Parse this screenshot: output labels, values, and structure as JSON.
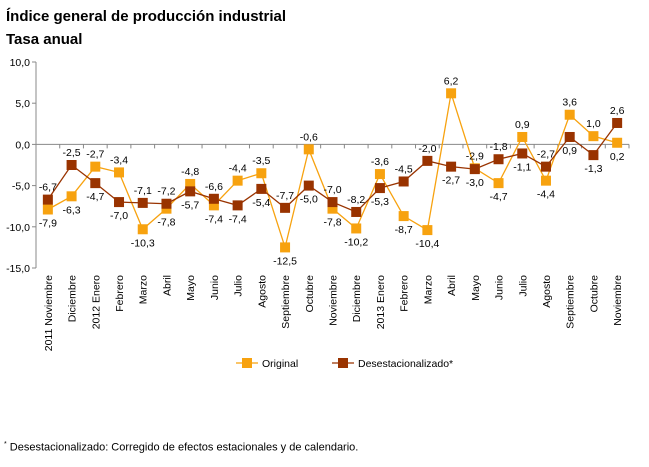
{
  "chart_data": {
    "type": "line",
    "title": "Índice general de producción industrial",
    "subtitle": "Tasa anual",
    "xlabel": "",
    "ylabel": "",
    "ylim": [
      -15,
      10
    ],
    "yticks": [
      "10,0",
      "5,0",
      "0,0",
      "-5,0",
      "-10,0",
      "-15,0"
    ],
    "ytick_values": [
      10,
      5,
      0,
      -5,
      -10,
      -15
    ],
    "categories": [
      "2011 Noviembre",
      "Diciembre",
      "2012 Enero",
      "Febrero",
      "Marzo",
      "Abril",
      "Mayo",
      "Junio",
      "Julio",
      "Agosto",
      "Septiembre",
      "Octubre",
      "Noviembre",
      "Diciembre",
      "2013 Enero",
      "Febrero",
      "Marzo",
      "Abril",
      "Mayo",
      "Junio",
      "Julio",
      "Agosto",
      "Septiembre",
      "Octubre",
      "Noviembre"
    ],
    "series": [
      {
        "name": "Original",
        "color": "#F7A20F",
        "values": [
          -7.9,
          -6.3,
          -2.7,
          -3.4,
          -10.3,
          -7.8,
          -4.8,
          -7.4,
          -4.4,
          -3.5,
          -12.5,
          -0.6,
          -7.8,
          -10.2,
          -3.6,
          -8.7,
          -10.4,
          6.2,
          -2.9,
          -4.7,
          0.9,
          -4.4,
          3.6,
          1.0,
          0.2
        ]
      },
      {
        "name": "Desestacionalizado*",
        "color": "#993300",
        "values": [
          -6.7,
          -2.5,
          -4.7,
          -7.0,
          -7.1,
          -7.2,
          -5.7,
          -6.6,
          -7.4,
          -5.4,
          -7.7,
          -5.0,
          -7.0,
          -8.2,
          -5.3,
          -4.5,
          -2.0,
          -2.7,
          -3.0,
          -1.8,
          -1.1,
          -2.7,
          0.9,
          -1.3,
          2.6
        ]
      }
    ],
    "legend_position": "bottom",
    "grid": false,
    "footnote_mark": "*",
    "footnote": "Desestacionalizado: Corregido de efectos estacionales y de calendario."
  }
}
